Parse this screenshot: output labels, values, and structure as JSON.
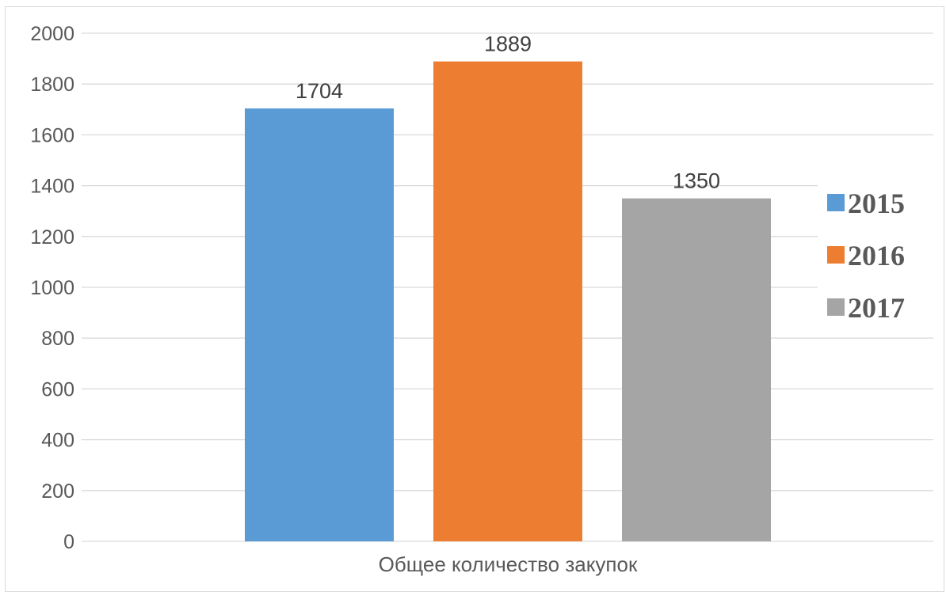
{
  "chart_data": {
    "type": "bar",
    "categories": [
      "Общее количество закупок"
    ],
    "series": [
      {
        "name": "2015",
        "values": [
          1704
        ],
        "color": "#5b9bd5"
      },
      {
        "name": "2016",
        "values": [
          1889
        ],
        "color": "#ed7d31"
      },
      {
        "name": "2017",
        "values": [
          1350
        ],
        "color": "#a5a5a5"
      }
    ],
    "title": "",
    "xlabel": "",
    "ylabel": "",
    "ylim": [
      0,
      2000
    ],
    "yticks": [
      0,
      200,
      400,
      600,
      800,
      1000,
      1200,
      1400,
      1600,
      1800,
      2000
    ],
    "grid": true,
    "legend_position": "right",
    "data_labels": true
  }
}
